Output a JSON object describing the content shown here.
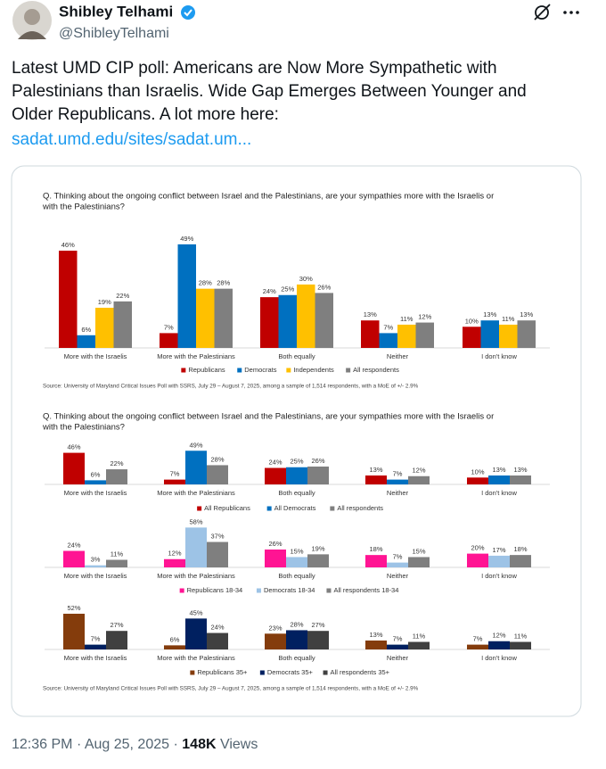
{
  "tweet": {
    "name": "Shibley Telhami",
    "handle": "@ShibleyTelhami",
    "text_lines": [
      "Latest UMD CIP poll: Americans are Now More Sympathetic with",
      "Palestinians than Israelis. Wide Gap Emerges Between Younger and",
      "Older Republicans. A lot more here:"
    ],
    "link": "sadat.umd.edu/sites/sadat.um...",
    "time": "12:36 PM",
    "separator": "·",
    "date": "Aug 25, 2025",
    "views": "148K",
    "views_label": "Views"
  },
  "chart_data": [
    {
      "type": "bar",
      "title": [
        "Q. Thinking about the ongoing conflict between Israel and the Palestinians, are your sympathies more with the Israelis or",
        "with the Palestinians?"
      ],
      "categories": [
        "More with the Israelis",
        "More with the Palestinians",
        "Both equally",
        "Neither",
        "I don't know"
      ],
      "series": [
        {
          "name": "Republicans",
          "color": "#c00000",
          "values": [
            46,
            7,
            24,
            13,
            10
          ],
          "value_labels": [
            "46%",
            "7%",
            "24%",
            "13%",
            "10%"
          ]
        },
        {
          "name": "Democrats",
          "color": "#0070c0",
          "values": [
            6,
            49,
            25,
            7,
            13
          ],
          "value_labels": [
            "6%",
            "49%",
            "25%",
            "7%",
            "13%"
          ]
        },
        {
          "name": "Independents",
          "color": "#ffc000",
          "values": [
            19,
            28,
            30,
            11,
            11
          ],
          "value_labels": [
            "19%",
            "28%",
            "30%",
            "11%",
            "11%"
          ]
        },
        {
          "name": "All respondents",
          "color": "#7f7f7f",
          "values": [
            22,
            28,
            26,
            12,
            13
          ],
          "value_labels": [
            "22%",
            "28%",
            "26%",
            "12%",
            "13%"
          ]
        }
      ],
      "source": "Source: University of Maryland Critical Issues Poll with SSRS, July 29 – August 7, 2025, among a sample of 1,514 respondents, with a MoE of +/- 2.9%"
    },
    {
      "type": "bar",
      "title": [
        "Q. Thinking about the ongoing conflict between Israel and the Palestinians, are your sympathies more with the Israelis or",
        "with the Palestinians?"
      ],
      "panels": [
        {
          "categories": [
            "More with the Israelis",
            "More with the Palestinians",
            "Both equally",
            "Neither",
            "I don't know"
          ],
          "series": [
            {
              "name": "All Republicans",
              "color": "#c00000",
              "values": [
                46,
                7,
                24,
                13,
                10
              ],
              "value_labels": [
                "46%",
                "7%",
                "24%",
                "13%",
                "10%"
              ]
            },
            {
              "name": "All Democrats",
              "color": "#0070c0",
              "values": [
                6,
                49,
                25,
                7,
                13
              ],
              "value_labels": [
                "6%",
                "49%",
                "25%",
                "7%",
                "13%"
              ]
            },
            {
              "name": "All respondents",
              "color": "#7f7f7f",
              "values": [
                22,
                28,
                26,
                12,
                13
              ],
              "value_labels": [
                "22%",
                "28%",
                "26%",
                "12%",
                "13%"
              ]
            }
          ]
        },
        {
          "categories": [
            "More with the Israelis",
            "More with the Palestinians",
            "Both equally",
            "Neither",
            "I don't know"
          ],
          "series": [
            {
              "name": "Republicans 18-34",
              "color": "#ff1493",
              "values": [
                24,
                12,
                26,
                18,
                20
              ],
              "value_labels": [
                "24%",
                "12%",
                "26%",
                "18%",
                "20%"
              ]
            },
            {
              "name": "Democrats 18-34",
              "color": "#9dc3e6",
              "values": [
                3,
                58,
                15,
                7,
                17
              ],
              "value_labels": [
                "3%",
                "58%",
                "15%",
                "7%",
                "17%"
              ]
            },
            {
              "name": "All respondents 18-34",
              "color": "#7f7f7f",
              "values": [
                11,
                37,
                19,
                15,
                18
              ],
              "value_labels": [
                "11%",
                "37%",
                "19%",
                "15%",
                "18%"
              ]
            }
          ]
        },
        {
          "categories": [
            "More with the Israelis",
            "More with the Palestinians",
            "Both equally",
            "Neither",
            "I don't know"
          ],
          "series": [
            {
              "name": "Republicans 35+",
              "color": "#843c0c",
              "values": [
                52,
                6,
                23,
                13,
                7
              ],
              "value_labels": [
                "52%",
                "6%",
                "23%",
                "13%",
                "7%"
              ]
            },
            {
              "name": "Democrats 35+",
              "color": "#002060",
              "values": [
                7,
                45,
                28,
                7,
                12
              ],
              "value_labels": [
                "7%",
                "45%",
                "28%",
                "7%",
                "12%"
              ]
            },
            {
              "name": "All respondents 35+",
              "color": "#404040",
              "values": [
                27,
                24,
                27,
                11,
                11
              ],
              "value_labels": [
                "27%",
                "24%",
                "27%",
                "11%",
                "11%"
              ]
            }
          ]
        }
      ],
      "source": "Source: University of Maryland Critical Issues Poll with SSRS, July 29 – August 7, 2025, among a sample of 1,514 respondents, with a MoE of +/- 2.9%"
    }
  ]
}
